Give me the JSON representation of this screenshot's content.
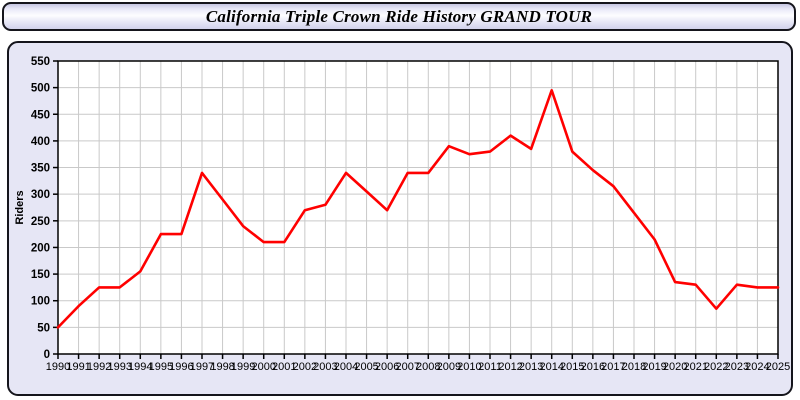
{
  "header": {
    "title": "California Triple Crown Ride History GRAND TOUR"
  },
  "chart_data": {
    "type": "line",
    "title": "California Triple Crown Ride History GRAND TOUR",
    "xlabel": "",
    "ylabel": "Riders",
    "x": [
      1990,
      1991,
      1992,
      1993,
      1994,
      1995,
      1996,
      1997,
      1998,
      1999,
      2000,
      2001,
      2002,
      2003,
      2004,
      2005,
      2006,
      2007,
      2008,
      2009,
      2010,
      2011,
      2012,
      2013,
      2014,
      2015,
      2016,
      2017,
      2018,
      2019,
      2020,
      2021,
      2022,
      2023,
      2024,
      2025
    ],
    "series": [
      {
        "name": "Riders",
        "values": [
          50,
          90,
          125,
          125,
          155,
          225,
          225,
          340,
          290,
          240,
          210,
          210,
          270,
          280,
          340,
          305,
          270,
          340,
          340,
          390,
          375,
          380,
          410,
          385,
          495,
          380,
          345,
          315,
          265,
          215,
          135,
          130,
          85,
          130,
          125,
          125
        ]
      }
    ],
    "ylim": [
      0,
      550
    ],
    "ytick_step": 50,
    "grid": true,
    "legend_position": "none",
    "colors": {
      "line": "#ff0000",
      "plot_background": "#ffffff",
      "panel_background": "#e6e6f5",
      "grid": "#c9c9c9",
      "axis": "#000000",
      "tick_text": "#000000"
    }
  }
}
